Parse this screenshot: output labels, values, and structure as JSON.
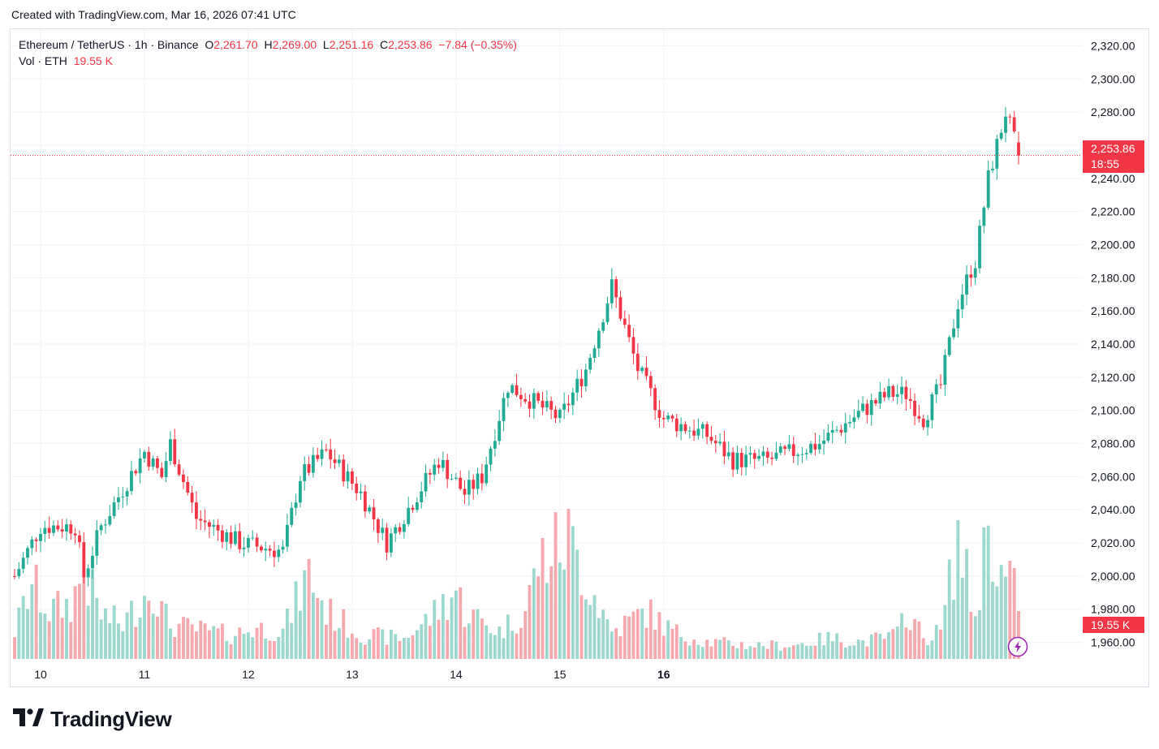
{
  "header": {
    "created_with": "Created with TradingView.com, Mar 16, 2026 07:41 UTC"
  },
  "legend": {
    "symbol": "Ethereum / TetherUS · 1h · Binance",
    "open_label": "O",
    "open": "2,261.70",
    "high_label": "H",
    "high": "2,269.00",
    "low_label": "L",
    "low": "2,251.16",
    "close_label": "C",
    "close": "2,253.86",
    "change": "−7.84 (−0.35%)",
    "vol_label": "Vol · ETH",
    "vol_value": "19.55 K"
  },
  "price_tag": {
    "price": "2,253.86",
    "countdown": "18:55",
    "vol": "19.55 K"
  },
  "brand": {
    "name": "TradingView"
  },
  "colors": {
    "up": "#22ab94",
    "down": "#f23645",
    "up_vol": "#9dd8cf",
    "down_vol": "#f5a9ae",
    "grid": "#f0f3fa"
  },
  "icons": {
    "logo": "tradingview-logo-icon",
    "bolt": "lightning-icon"
  },
  "chart_data": {
    "type": "candlestick",
    "title": "Ethereum / TetherUS · 1h · Binance",
    "ylim": [
      1950,
      2330
    ],
    "y_ticks": [
      "2,320.00",
      "2,300.00",
      "2,280.00",
      "2,260.00",
      "2,240.00",
      "2,220.00",
      "2,200.00",
      "2,180.00",
      "2,160.00",
      "2,140.00",
      "2,120.00",
      "2,100.00",
      "2,080.00",
      "2,060.00",
      "2,040.00",
      "2,020.00",
      "2,000.00",
      "1,980.00",
      "1,960.00"
    ],
    "x_ticks": [
      "10",
      "11",
      "12",
      "13",
      "14",
      "15",
      "16"
    ],
    "last_price": 2253.86,
    "anchors": [
      [
        0,
        2000
      ],
      [
        6,
        2030
      ],
      [
        14,
        2030
      ],
      [
        16,
        2000
      ],
      [
        20,
        2030
      ],
      [
        30,
        2075
      ],
      [
        34,
        2060
      ],
      [
        36,
        2080
      ],
      [
        42,
        2035
      ],
      [
        52,
        2020
      ],
      [
        62,
        2015
      ],
      [
        66,
        2060
      ],
      [
        72,
        2075
      ],
      [
        80,
        2050
      ],
      [
        86,
        2020
      ],
      [
        98,
        2070
      ],
      [
        104,
        2050
      ],
      [
        108,
        2060
      ],
      [
        114,
        2115
      ],
      [
        126,
        2095
      ],
      [
        132,
        2125
      ],
      [
        138,
        2175
      ],
      [
        144,
        2125
      ],
      [
        150,
        2095
      ],
      [
        160,
        2085
      ],
      [
        166,
        2070
      ],
      [
        174,
        2070
      ],
      [
        186,
        2080
      ],
      [
        196,
        2100
      ],
      [
        202,
        2110
      ],
      [
        206,
        2110
      ],
      [
        210,
        2095
      ],
      [
        214,
        2115
      ],
      [
        218,
        2165
      ],
      [
        221,
        2185
      ],
      [
        222,
        2190
      ],
      [
        225,
        2240
      ],
      [
        229,
        2280
      ],
      [
        232,
        2253.86
      ]
    ],
    "volume_anchors_k": [
      [
        0,
        8
      ],
      [
        4,
        22
      ],
      [
        8,
        14
      ],
      [
        13,
        16
      ],
      [
        16,
        25
      ],
      [
        20,
        13
      ],
      [
        25,
        10
      ],
      [
        32,
        22
      ],
      [
        34,
        14
      ],
      [
        36,
        10
      ],
      [
        40,
        9
      ],
      [
        50,
        7
      ],
      [
        56,
        9
      ],
      [
        62,
        8
      ],
      [
        68,
        25
      ],
      [
        72,
        14
      ],
      [
        80,
        7
      ],
      [
        90,
        6
      ],
      [
        96,
        12
      ],
      [
        102,
        20
      ],
      [
        104,
        14
      ],
      [
        112,
        8
      ],
      [
        118,
        14
      ],
      [
        121,
        28
      ],
      [
        128,
        35
      ],
      [
        138,
        8
      ],
      [
        146,
        14
      ],
      [
        152,
        8
      ],
      [
        160,
        5
      ],
      [
        170,
        4
      ],
      [
        180,
        4
      ],
      [
        188,
        6
      ],
      [
        196,
        5
      ],
      [
        204,
        7
      ],
      [
        206,
        15
      ],
      [
        210,
        6
      ],
      [
        214,
        8
      ],
      [
        218,
        35
      ],
      [
        222,
        12
      ],
      [
        225,
        40
      ],
      [
        228,
        24
      ],
      [
        232,
        19.55
      ]
    ]
  }
}
